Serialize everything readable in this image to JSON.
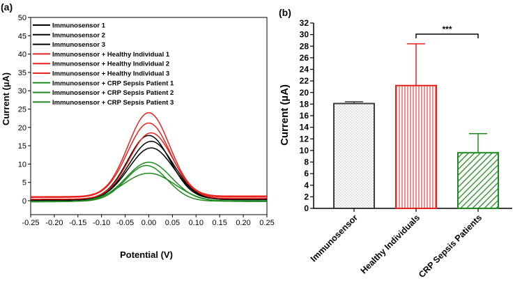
{
  "chart_data": [
    {
      "type": "line",
      "panel_label": "(a)",
      "xlabel": "Potential (V)",
      "ylabel": "Current (µA)",
      "xlim": [
        -0.25,
        0.25
      ],
      "ylim": [
        -2,
        50
      ],
      "xticks": [
        -0.25,
        -0.2,
        -0.15,
        -0.1,
        -0.05,
        0.0,
        0.05,
        0.1,
        0.15,
        0.2,
        0.25
      ],
      "xtick_labels": [
        "-0.25",
        "-0.20",
        "-0.15",
        "-0.10",
        "-0.05",
        "0.00",
        "0.05",
        "0.10",
        "0.15",
        "0.20",
        "0.25"
      ],
      "yticks": [
        0,
        5,
        10,
        15,
        20,
        25,
        30,
        35,
        40,
        45,
        50
      ],
      "legend_position": "top-left",
      "series": [
        {
          "name": "Immunosensor 1",
          "color": "#000000",
          "peak": 17.8,
          "peak_x": 0.0,
          "base_left": 0.3,
          "base_right": 0.5,
          "width": 0.045
        },
        {
          "name": "Immunosensor 2",
          "color": "#000000",
          "peak": 16.2,
          "peak_x": 0.005,
          "base_left": 0.2,
          "base_right": 0.4,
          "width": 0.047
        },
        {
          "name": "Immunosensor 3",
          "color": "#000000",
          "peak": 14.4,
          "peak_x": 0.005,
          "base_left": 0.1,
          "base_right": 0.3,
          "width": 0.048
        },
        {
          "name": "Immunosensor + Healthy Individual 1",
          "color": "#e8231f",
          "peak": 24.0,
          "peak_x": 0.0,
          "base_left": 1.1,
          "base_right": 1.3,
          "width": 0.044
        },
        {
          "name": "Immunosensor + Healthy Individual 2",
          "color": "#e8231f",
          "peak": 21.2,
          "peak_x": 0.0,
          "base_left": 0.9,
          "base_right": 1.0,
          "width": 0.045
        },
        {
          "name": "Immunosensor + Healthy Individual 3",
          "color": "#e8231f",
          "peak": 18.5,
          "peak_x": 0.005,
          "base_left": 0.4,
          "base_right": 0.6,
          "width": 0.046
        },
        {
          "name": "Immunosensor + CRP Sepsis Patient 1",
          "color": "#1f8a1f",
          "peak": 10.5,
          "peak_x": 0.0,
          "base_left": -0.2,
          "base_right": 0.0,
          "width": 0.048
        },
        {
          "name": "Immunosensor + CRP Sepsis Patient 2",
          "color": "#1f8a1f",
          "peak": 9.6,
          "peak_x": -0.005,
          "base_left": -0.2,
          "base_right": -0.1,
          "width": 0.044
        },
        {
          "name": "Immunosensor + CRP Sepsis Patient 3",
          "color": "#1f8a1f",
          "peak": 7.5,
          "peak_x": 0.0,
          "base_left": -0.3,
          "base_right": -0.2,
          "width": 0.055
        }
      ]
    },
    {
      "type": "bar",
      "panel_label": "(b)",
      "ylabel": "Current (µA)",
      "ylim": [
        0,
        32
      ],
      "yticks": [
        0,
        2,
        4,
        6,
        8,
        10,
        12,
        14,
        16,
        18,
        20,
        22,
        24,
        26,
        28,
        30,
        32
      ],
      "categories": [
        "Immunosensor",
        "Healthy Individuals",
        "CRP Sepsis Patients"
      ],
      "values": [
        18.1,
        21.2,
        9.6
      ],
      "errors": [
        0.3,
        7.2,
        3.3
      ],
      "colors": [
        "#3a3a3a",
        "#e8231f",
        "#1f8a1f"
      ],
      "patterns": [
        "dots",
        "vertical-lines",
        "diagonal-lines"
      ],
      "significance": {
        "from": "Healthy Individuals",
        "to": "CRP Sepsis Patients",
        "label": "***"
      }
    }
  ]
}
